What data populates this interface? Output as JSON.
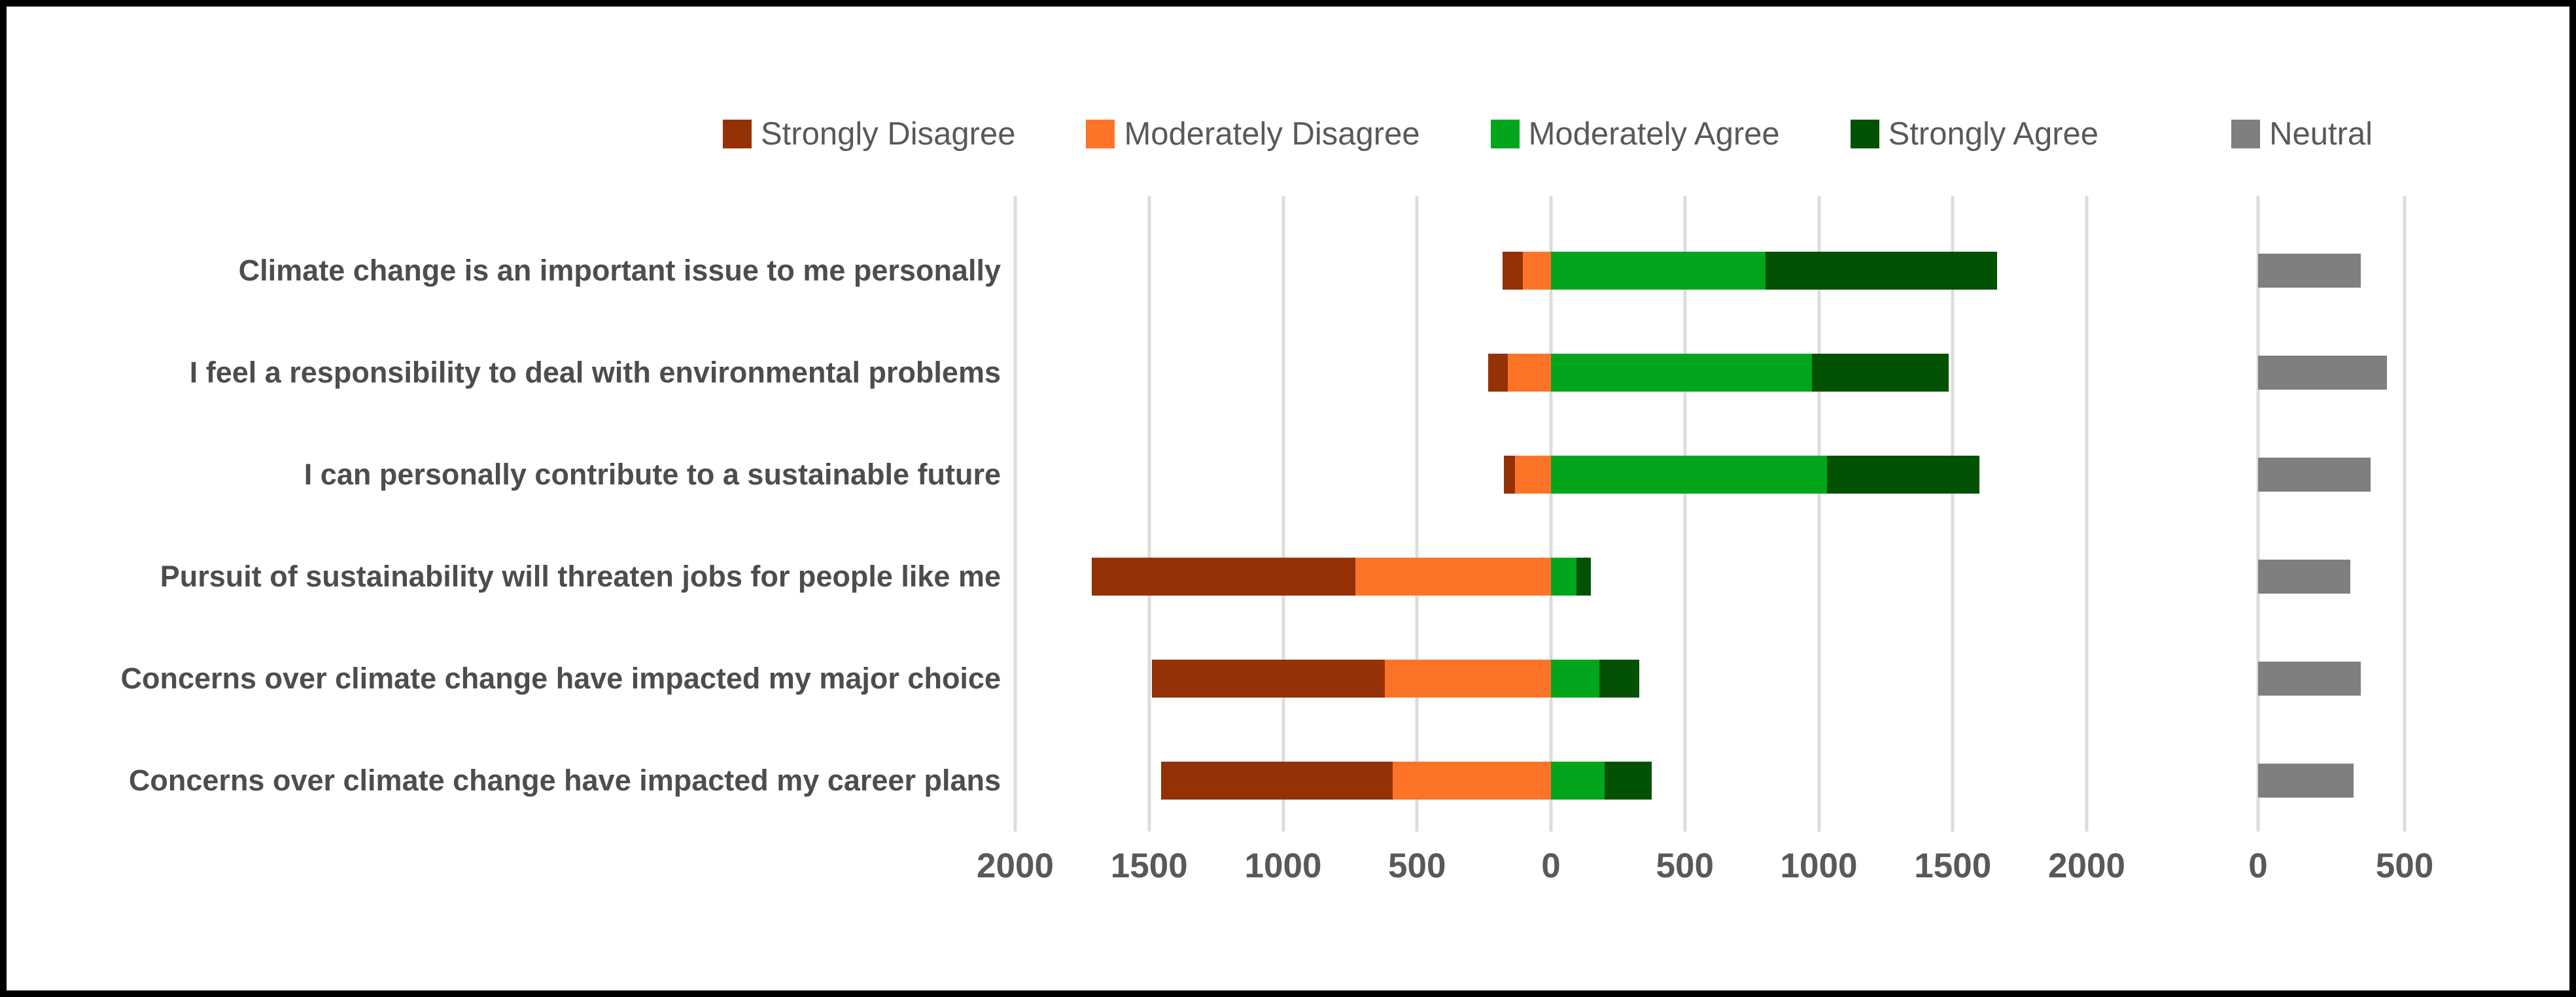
{
  "chart_data": {
    "type": "bar",
    "variant": "horizontal-diverging-stacked-likert",
    "title": "",
    "legend_position": "top",
    "categories": [
      "Climate change is an important issue to me personally",
      "I feel a responsibility to deal with environmental problems",
      "I can personally contribute to a sustainable future",
      "Pursuit of sustainability will threaten jobs for people like me",
      "Concerns over climate change have impacted my major choice",
      "Concerns over climate change have impacted my career plans"
    ],
    "series": [
      {
        "name": "Strongly Disagree",
        "color": "#943105",
        "side": "negative",
        "order_from_zero": 2,
        "values": [
          75,
          75,
          40,
          985,
          870,
          865
        ]
      },
      {
        "name": "Moderately Disagree",
        "color": "#FD7428",
        "side": "negative",
        "order_from_zero": 1,
        "values": [
          105,
          160,
          135,
          730,
          620,
          590
        ]
      },
      {
        "name": "Moderately Agree",
        "color": "#02A61C",
        "side": "positive",
        "order_from_zero": 1,
        "values": [
          800,
          975,
          1030,
          95,
          180,
          200
        ]
      },
      {
        "name": "Strongly Agree",
        "color": "#035203",
        "side": "positive",
        "order_from_zero": 2,
        "values": [
          865,
          510,
          570,
          55,
          150,
          175
        ]
      }
    ],
    "neutral_series": {
      "name": "Neutral",
      "color": "#7F7F7F",
      "values": [
        350,
        440,
        385,
        315,
        350,
        325
      ]
    },
    "main_axis": {
      "min": -2000,
      "max": 2000,
      "tick_step": 500,
      "tick_labels": [
        "2000",
        "1500",
        "1000",
        "500",
        "0",
        "500",
        "1000",
        "1500",
        "2000"
      ],
      "gridlines": true
    },
    "neutral_axis": {
      "min": 0,
      "max": 1000,
      "tick_values": [
        0,
        500
      ],
      "tick_labels": [
        "0",
        "500"
      ],
      "gridlines": true
    }
  },
  "legend": {
    "items": [
      {
        "label": "Strongly Disagree",
        "color": "#943105",
        "separated": false
      },
      {
        "label": "Moderately Disagree",
        "color": "#FD7428",
        "separated": false
      },
      {
        "label": "Moderately Agree",
        "color": "#02A61C",
        "separated": false
      },
      {
        "label": "Strongly Agree",
        "color": "#035203",
        "separated": false
      },
      {
        "label": "Neutral",
        "color": "#7F7F7F",
        "separated": true
      }
    ]
  },
  "colors": {
    "gridline": "#DCDCDC",
    "tick_text": "#595959",
    "category_text": "#4D4D4D",
    "legend_text": "#595959",
    "frame_border": "#000000",
    "background": "#FFFFFF"
  }
}
